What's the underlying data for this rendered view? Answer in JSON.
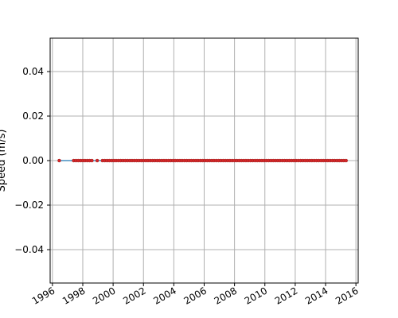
{
  "chart_data": {
    "type": "scatter",
    "title": "",
    "xlabel": "",
    "ylabel": "Speed (m/s)",
    "xlim": [
      1995.85,
      2016.15
    ],
    "ylim": [
      -0.055,
      0.055
    ],
    "x_ticks": [
      "1996",
      "1998",
      "2000",
      "2002",
      "2004",
      "2006",
      "2008",
      "2010",
      "2012",
      "2014",
      "2016"
    ],
    "y_ticks": [
      "−0.04",
      "−0.02",
      "0.00",
      "0.02",
      "0.04"
    ],
    "y_tick_values": [
      -0.04,
      -0.02,
      0.0,
      0.02,
      0.04
    ],
    "grid": true,
    "series": [
      {
        "marker_color": "#d62728",
        "line_color": "#1f77b4",
        "x": [
          1996.45,
          1997.4,
          1997.55,
          1997.7,
          1997.85,
          1998.0,
          1998.15,
          1998.3,
          1998.45,
          1998.6,
          1998.95,
          1999.3,
          1999.45,
          1999.6,
          1999.75,
          1999.9,
          2000.05,
          2000.2,
          2000.35,
          2000.5,
          2000.65,
          2000.8,
          2000.95,
          2001.1,
          2001.25,
          2001.4,
          2001.55,
          2001.7,
          2001.85,
          2002.0,
          2002.15,
          2002.3,
          2002.45,
          2002.6,
          2002.75,
          2002.9,
          2003.05,
          2003.2,
          2003.35,
          2003.5,
          2003.65,
          2003.8,
          2003.95,
          2004.1,
          2004.25,
          2004.4,
          2004.55,
          2004.7,
          2004.85,
          2005.0,
          2005.15,
          2005.3,
          2005.45,
          2005.6,
          2005.75,
          2005.9,
          2006.05,
          2006.2,
          2006.35,
          2006.5,
          2006.65,
          2006.8,
          2006.95,
          2007.1,
          2007.25,
          2007.4,
          2007.55,
          2007.7,
          2007.85,
          2008.0,
          2008.15,
          2008.3,
          2008.45,
          2008.6,
          2008.75,
          2008.9,
          2009.05,
          2009.2,
          2009.35,
          2009.5,
          2009.65,
          2009.8,
          2009.95,
          2010.1,
          2010.25,
          2010.4,
          2010.55,
          2010.7,
          2010.85,
          2011.0,
          2011.15,
          2011.3,
          2011.45,
          2011.6,
          2011.75,
          2011.9,
          2012.05,
          2012.2,
          2012.35,
          2012.5,
          2012.65,
          2012.8,
          2012.95,
          2013.1,
          2013.25,
          2013.4,
          2013.55,
          2013.7,
          2013.85,
          2014.0,
          2014.15,
          2014.3,
          2014.45,
          2014.6,
          2014.75,
          2014.9,
          2015.05,
          2015.2,
          2015.35
        ],
        "y": [
          0,
          0,
          0,
          0,
          0,
          0,
          0,
          0,
          0,
          0,
          0,
          0,
          0,
          0,
          0,
          0,
          0,
          0,
          0,
          0,
          0,
          0,
          0,
          0,
          0,
          0,
          0,
          0,
          0,
          0,
          0,
          0,
          0,
          0,
          0,
          0,
          0,
          0,
          0,
          0,
          0,
          0,
          0,
          0,
          0,
          0,
          0,
          0,
          0,
          0,
          0,
          0,
          0,
          0,
          0,
          0,
          0,
          0,
          0,
          0,
          0,
          0,
          0,
          0,
          0,
          0,
          0,
          0,
          0,
          0,
          0,
          0,
          0,
          0,
          0,
          0,
          0,
          0,
          0,
          0,
          0,
          0,
          0,
          0,
          0,
          0,
          0,
          0,
          0,
          0,
          0,
          0,
          0,
          0,
          0,
          0,
          0,
          0,
          0,
          0,
          0,
          0,
          0,
          0,
          0,
          0,
          0,
          0,
          0,
          0,
          0,
          0,
          0,
          0,
          0,
          0,
          0,
          0,
          0
        ]
      }
    ]
  }
}
